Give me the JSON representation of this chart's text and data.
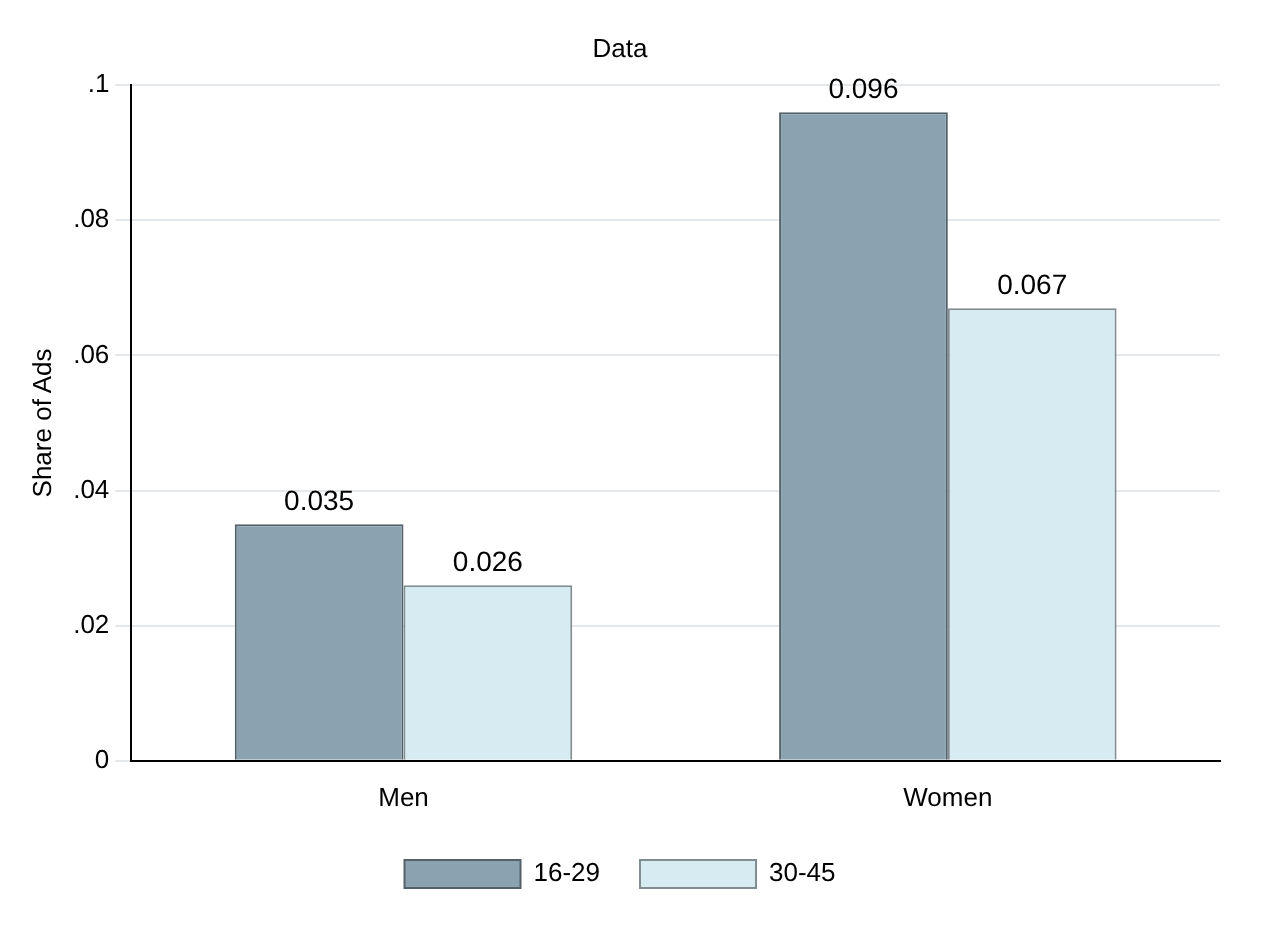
{
  "chart_data": {
    "type": "bar",
    "title": "Data",
    "ylabel": "Share of Ads",
    "categories": [
      "Men",
      "Women"
    ],
    "series": [
      {
        "name": "16-29",
        "color": "#8ba3b1",
        "values": [
          0.035,
          0.096
        ]
      },
      {
        "name": "30-45",
        "color": "#d6ebf2",
        "values": [
          0.026,
          0.067
        ]
      }
    ],
    "ylim": [
      0,
      0.1
    ],
    "yticks": [
      {
        "value": 0,
        "label": "0"
      },
      {
        "value": 0.02,
        "label": ".02"
      },
      {
        "value": 0.04,
        "label": ".04"
      },
      {
        "value": 0.06,
        "label": ".06"
      },
      {
        "value": 0.08,
        "label": ".08"
      },
      {
        "value": 0.1,
        "label": ".1"
      }
    ],
    "grid": "y",
    "legend": "bottom",
    "data_labels": true
  }
}
